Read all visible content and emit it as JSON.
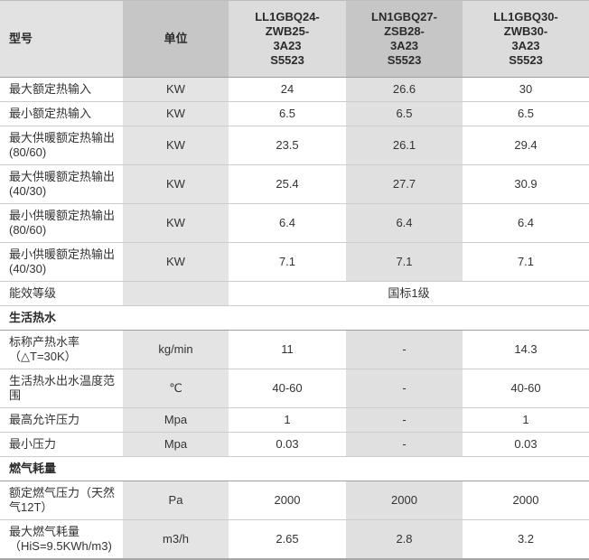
{
  "colors": {
    "header_label_bg": "#e2e2e2",
    "header_dark_bg": "#c6c6c6",
    "header_model_side_bg": "#dcdcdc",
    "body_unit_col_bg": "#e4e4e4",
    "body_mid_col_bg": "#e0e0e0",
    "row_border": "#cccccc",
    "section_border": "#9f9f9f",
    "text": "#333333"
  },
  "table": {
    "header": {
      "model_col": "型号",
      "unit_col": "单位",
      "models": [
        "LL1GBQ24-\nZWB25-\n3A23\nS5523",
        "LN1GBQ27-\nZSB28-\n3A23\nS5523",
        "LL1GBQ30-\nZWB30-\n3A23\nS5523"
      ]
    },
    "rows": [
      {
        "type": "data",
        "label": "最大额定热输入",
        "unit": "KW",
        "values": [
          "24",
          "26.6",
          "30"
        ]
      },
      {
        "type": "data",
        "label": "最小额定热输入",
        "unit": "KW",
        "values": [
          "6.5",
          "6.5",
          "6.5"
        ]
      },
      {
        "type": "data",
        "label": "最大供暖额定热输出\n(80/60)",
        "unit": "KW",
        "values": [
          "23.5",
          "26.1",
          "29.4"
        ]
      },
      {
        "type": "data",
        "label": "最大供暖额定热输出\n(40/30)",
        "unit": "KW",
        "values": [
          "25.4",
          "27.7",
          "30.9"
        ]
      },
      {
        "type": "data",
        "label": "最小供暖额定热输出\n(80/60)",
        "unit": "KW",
        "values": [
          "6.4",
          "6.4",
          "6.4"
        ]
      },
      {
        "type": "data",
        "label": "最小供暖额定热输出\n(40/30)",
        "unit": "KW",
        "values": [
          "7.1",
          "7.1",
          "7.1"
        ]
      },
      {
        "type": "merged",
        "label": "能效等级",
        "unit": "",
        "value": "国标1级"
      },
      {
        "type": "section",
        "label": "生活热水"
      },
      {
        "type": "data",
        "label": "标称产热水率\n（△T=30K）",
        "unit": "kg/min",
        "values": [
          "11",
          "-",
          "14.3"
        ]
      },
      {
        "type": "data",
        "label": "生活热水出水温度范\n围",
        "unit": "℃",
        "values": [
          "40-60",
          "-",
          "40-60"
        ]
      },
      {
        "type": "data",
        "label": "最高允许压力",
        "unit": "Mpa",
        "values": [
          "1",
          "-",
          "1"
        ]
      },
      {
        "type": "data",
        "label": "最小压力",
        "unit": "Mpa",
        "values": [
          "0.03",
          "-",
          "0.03"
        ]
      },
      {
        "type": "section",
        "label": "燃气耗量"
      },
      {
        "type": "data",
        "label": "额定燃气压力（天然\n气12T）",
        "unit": "Pa",
        "values": [
          "2000",
          "2000",
          "2000"
        ]
      },
      {
        "type": "data",
        "label": "最大燃气耗量\n（HiS=9.5KWh/m3)",
        "unit": "m3/h",
        "values": [
          "2.65",
          "2.8",
          "3.2"
        ]
      }
    ]
  }
}
